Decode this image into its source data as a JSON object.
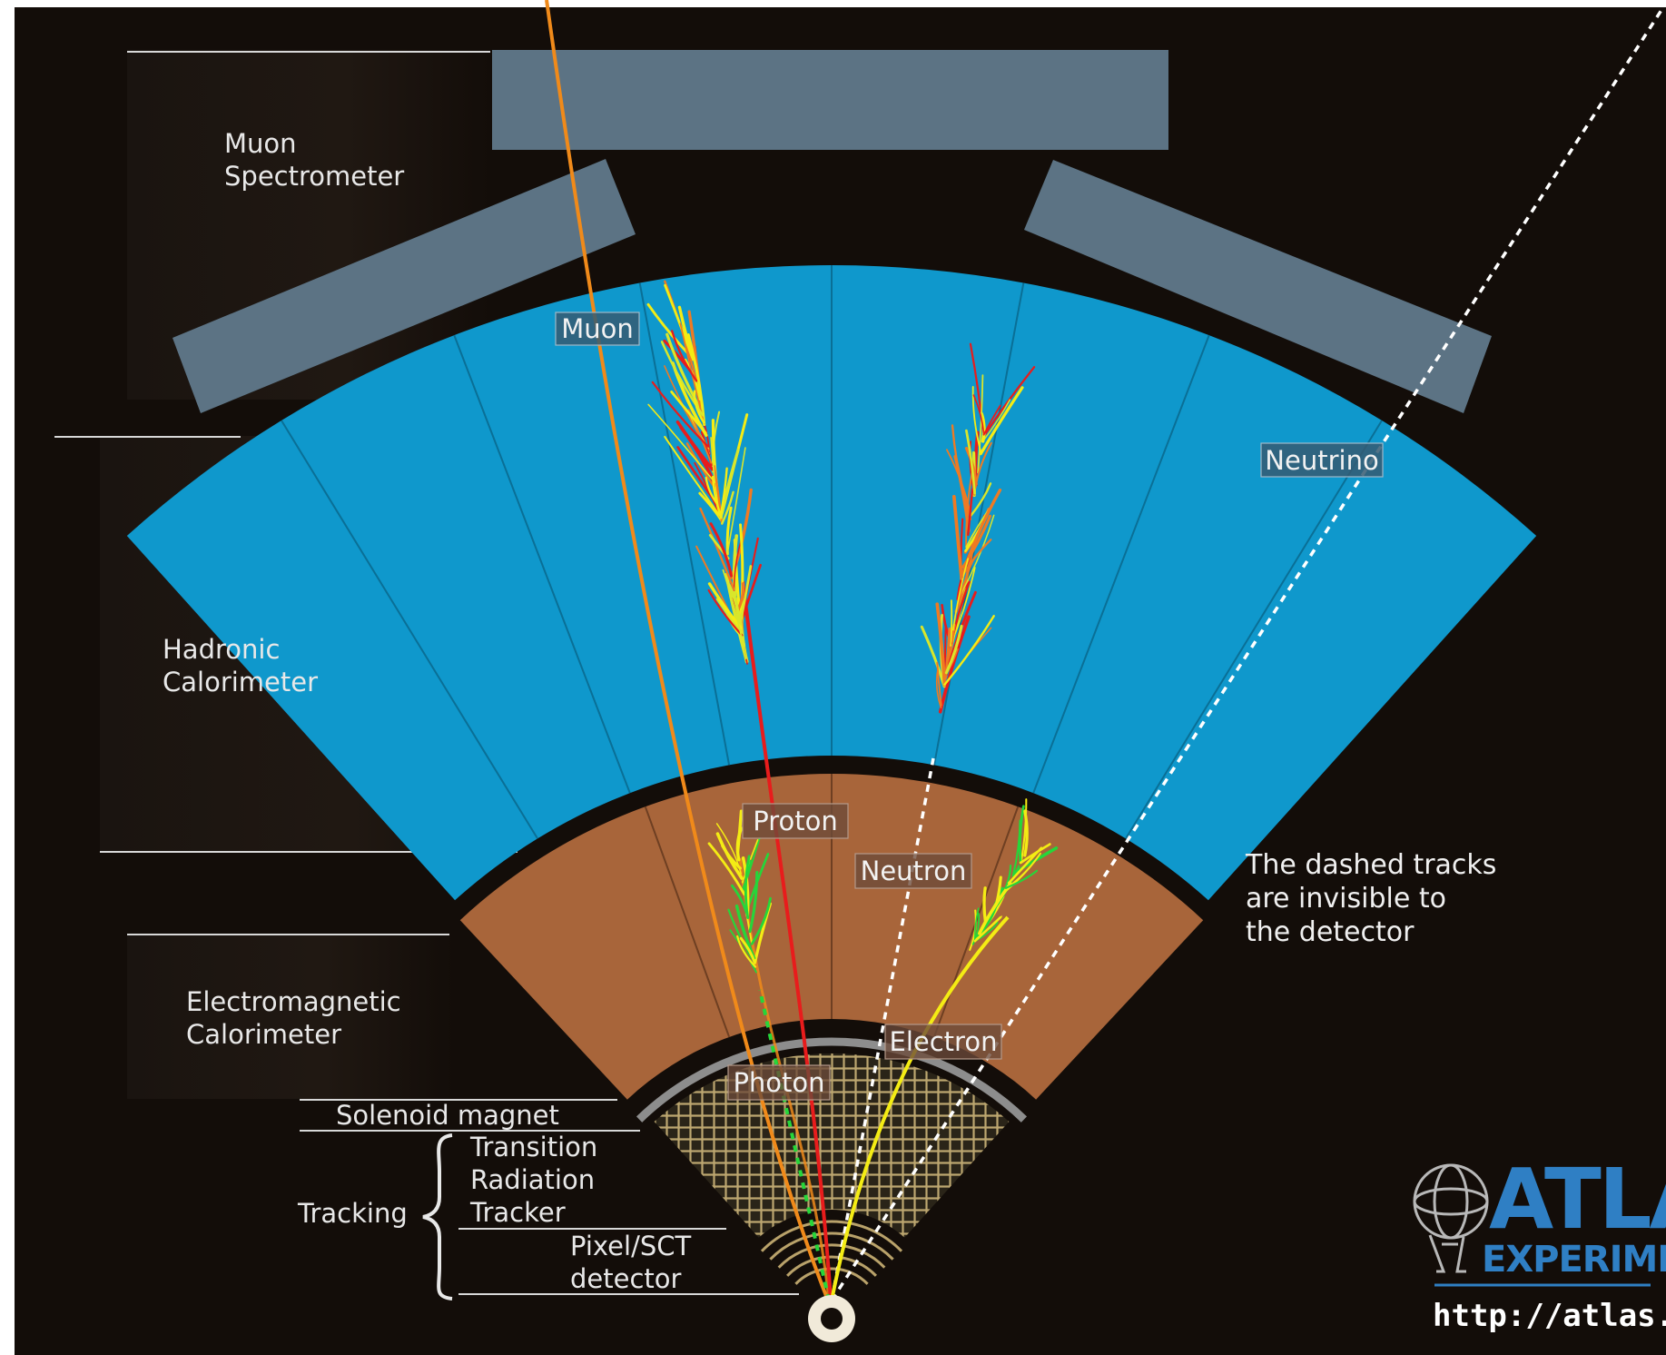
{
  "sections": {
    "muon_spectrometer": [
      "Muon",
      "Spectrometer"
    ],
    "hadronic_calorimeter": [
      "Hadronic",
      "Calorimeter"
    ],
    "em_calorimeter": [
      "Electromagnetic",
      "Calorimeter"
    ],
    "solenoid": "Solenoid magnet",
    "trt": [
      "Transition",
      "Radiation",
      "Tracker"
    ],
    "tracking": "Tracking",
    "pixel": [
      "Pixel/SCT",
      "detector"
    ]
  },
  "particles": {
    "muon": "Muon",
    "neutrino": "Neutrino",
    "proton": "Proton",
    "neutron": "Neutron",
    "electron": "Electron",
    "photon": "Photon"
  },
  "note": [
    "The dashed tracks",
    "are invisible to",
    "the detector"
  ],
  "logo": {
    "title": "ATLAS",
    "subtitle": "EXPERIMENT",
    "url": "http://atlas.ch"
  },
  "colors": {
    "background": "#130d09",
    "muon_chamber": "#5c7384",
    "hadronic_calorimeter": "#0f98cc",
    "em_calorimeter": "#a8653a",
    "solenoid": "#8d8d8d",
    "trt_mesh": "#b9a26a",
    "muon_track": "#f08a1a",
    "proton_track": "#e81c1c",
    "electron_track": "#f4ec14",
    "photon_track": "#26d63a",
    "invisible_track": "#ffffff",
    "logo": "#2f7fc4"
  }
}
